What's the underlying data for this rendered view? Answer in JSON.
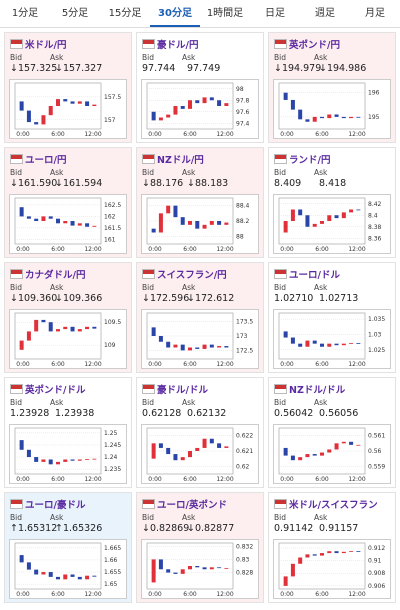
{
  "tabs": [
    "1分足",
    "5分足",
    "15分足",
    "30分足",
    "1時間足",
    "日足",
    "週足",
    "月足"
  ],
  "active_tab": 3,
  "labels": {
    "bid": "Bid",
    "ask": "Ask"
  },
  "x_labels": [
    "0:00",
    "6:00",
    "12:00"
  ],
  "cards": [
    {
      "pair": "米ドル/円",
      "bid": "↓157.325",
      "ask": "↓157.327",
      "trend": "down",
      "chart": {
        "ylim": [
          156.8,
          157.8
        ],
        "yticks": [
          157.5,
          157
        ],
        "prices": [
          157.4,
          157.2,
          156.95,
          156.9,
          157.1,
          157.3,
          157.45,
          157.4,
          157.35,
          157.4,
          157.3,
          157.33
        ]
      }
    },
    {
      "pair": "豪ドル/円",
      "bid": "97.744",
      "ask": "97.749",
      "trend": "none",
      "chart": {
        "ylim": [
          97.3,
          98.1
        ],
        "yticks": [
          98,
          97.8,
          97.6,
          97.4
        ],
        "prices": [
          97.6,
          97.45,
          97.5,
          97.55,
          97.7,
          97.65,
          97.8,
          97.75,
          97.85,
          97.8,
          97.7,
          97.75
        ]
      }
    },
    {
      "pair": "英ポンド/円",
      "bid": "↓194.979",
      "ask": "↓194.986",
      "trend": "down",
      "chart": {
        "ylim": [
          194.5,
          196.4
        ],
        "yticks": [
          196,
          195
        ],
        "prices": [
          196.0,
          195.7,
          195.3,
          194.9,
          194.8,
          195.0,
          194.95,
          195.1,
          195.0,
          194.95,
          195.0,
          194.98
        ]
      }
    },
    {
      "pair": "ユーロ/円",
      "bid": "↓161.590",
      "ask": "↓161.594",
      "trend": "down",
      "chart": {
        "ylim": [
          160.8,
          162.8
        ],
        "yticks": [
          162.5,
          162,
          161.5,
          161
        ],
        "prices": [
          162.4,
          162.0,
          161.9,
          161.8,
          162.0,
          161.9,
          161.7,
          161.8,
          161.6,
          161.7,
          161.55,
          161.59
        ]
      }
    },
    {
      "pair": "NZドル/円",
      "bid": "↓88.176",
      "ask": "↓88.183",
      "trend": "down",
      "chart": {
        "ylim": [
          87.9,
          88.5
        ],
        "yticks": [
          88.4,
          88.2,
          88
        ],
        "prices": [
          88.1,
          88.05,
          88.3,
          88.4,
          88.25,
          88.15,
          88.2,
          88.1,
          88.15,
          88.2,
          88.15,
          88.18
        ]
      }
    },
    {
      "pair": "ランド/円",
      "bid": "8.409",
      "ask": "8.418",
      "trend": "none",
      "chart": {
        "ylim": [
          8.35,
          8.43
        ],
        "yticks": [
          8.42,
          8.4,
          8.38,
          8.36
        ],
        "prices": [
          8.37,
          8.39,
          8.41,
          8.4,
          8.38,
          8.385,
          8.39,
          8.4,
          8.395,
          8.405,
          8.41,
          8.409
        ]
      }
    },
    {
      "pair": "カナダドル/円",
      "bid": "↓109.360",
      "ask": "↓109.366",
      "trend": "down",
      "chart": {
        "ylim": [
          108.7,
          109.7
        ],
        "yticks": [
          109.5,
          109
        ],
        "prices": [
          108.9,
          109.1,
          109.3,
          109.55,
          109.5,
          109.3,
          109.35,
          109.4,
          109.3,
          109.35,
          109.4,
          109.36
        ]
      }
    },
    {
      "pair": "スイスフラン/円",
      "bid": "↓172.596",
      "ask": "↓172.612",
      "trend": "down",
      "chart": {
        "ylim": [
          172.2,
          173.8
        ],
        "yticks": [
          173.5,
          173,
          172.5
        ],
        "prices": [
          173.3,
          173.0,
          172.8,
          172.6,
          172.7,
          172.5,
          172.6,
          172.55,
          172.7,
          172.6,
          172.65,
          172.6
        ]
      }
    },
    {
      "pair": "ユーロ/ドル",
      "bid": "1.02710",
      "ask": "1.02713",
      "trend": "none",
      "chart": {
        "ylim": [
          1.022,
          1.037
        ],
        "yticks": [
          1.035,
          1.03,
          1.025
        ],
        "prices": [
          1.031,
          1.029,
          1.027,
          1.026,
          1.028,
          1.027,
          1.026,
          1.027,
          1.0265,
          1.027,
          1.0272,
          1.0271
        ]
      }
    },
    {
      "pair": "英ポンド/ドル",
      "bid": "1.23928",
      "ask": "1.23938",
      "trend": "none",
      "chart": {
        "ylim": [
          1.233,
          1.252
        ],
        "yticks": [
          1.25,
          1.245,
          1.24,
          1.235
        ],
        "prices": [
          1.247,
          1.243,
          1.24,
          1.238,
          1.239,
          1.237,
          1.238,
          1.239,
          1.2385,
          1.239,
          1.2392,
          1.2393
        ]
      }
    },
    {
      "pair": "豪ドル/ドル",
      "bid": "0.62128",
      "ask": "0.62132",
      "trend": "none",
      "chart": {
        "ylim": [
          0.6195,
          0.6225
        ],
        "yticks": [
          0.622,
          0.621,
          0.62
        ],
        "prices": [
          0.6205,
          0.6215,
          0.6212,
          0.6208,
          0.6204,
          0.6206,
          0.621,
          0.6212,
          0.6218,
          0.6215,
          0.6212,
          0.6213
        ]
      }
    },
    {
      "pair": "NZドル/ドル",
      "bid": "0.56042",
      "ask": "0.56056",
      "trend": "none",
      "chart": {
        "ylim": [
          0.5585,
          0.5615
        ],
        "yticks": [
          0.561,
          0.56,
          0.559
        ],
        "prices": [
          0.5602,
          0.5597,
          0.5594,
          0.5596,
          0.5598,
          0.5597,
          0.5599,
          0.5601,
          0.5605,
          0.5606,
          0.5604,
          0.5604
        ]
      }
    },
    {
      "pair": "ユーロ/豪ドル",
      "bid": "↑1.65312",
      "ask": "↑1.65326",
      "trend": "up",
      "chart": {
        "ylim": [
          1.648,
          1.667
        ],
        "yticks": [
          1.665,
          1.66,
          1.655,
          1.65
        ],
        "prices": [
          1.662,
          1.659,
          1.656,
          1.654,
          1.655,
          1.653,
          1.652,
          1.654,
          1.653,
          1.652,
          1.6535,
          1.6531
        ]
      }
    },
    {
      "pair": "ユーロ/英ポンド",
      "bid": "↓0.82869",
      "ask": "↓0.82877",
      "trend": "down",
      "chart": {
        "ylim": [
          0.8255,
          0.8325
        ],
        "yticks": [
          0.832,
          0.83,
          0.828
        ],
        "prices": [
          0.8265,
          0.83,
          0.8285,
          0.828,
          0.8278,
          0.8285,
          0.829,
          0.8288,
          0.8285,
          0.8288,
          0.8287,
          0.8287
        ]
      }
    },
    {
      "pair": "米ドル/スイスフラン",
      "bid": "0.91142",
      "ask": "0.91157",
      "trend": "none",
      "chart": {
        "ylim": [
          0.9055,
          0.9128
        ],
        "yticks": [
          0.912,
          0.91,
          0.908,
          0.906
        ],
        "prices": [
          0.906,
          0.9075,
          0.9095,
          0.9105,
          0.911,
          0.9108,
          0.9112,
          0.9115,
          0.9112,
          0.9114,
          0.9115,
          0.91142
        ]
      }
    }
  ]
}
